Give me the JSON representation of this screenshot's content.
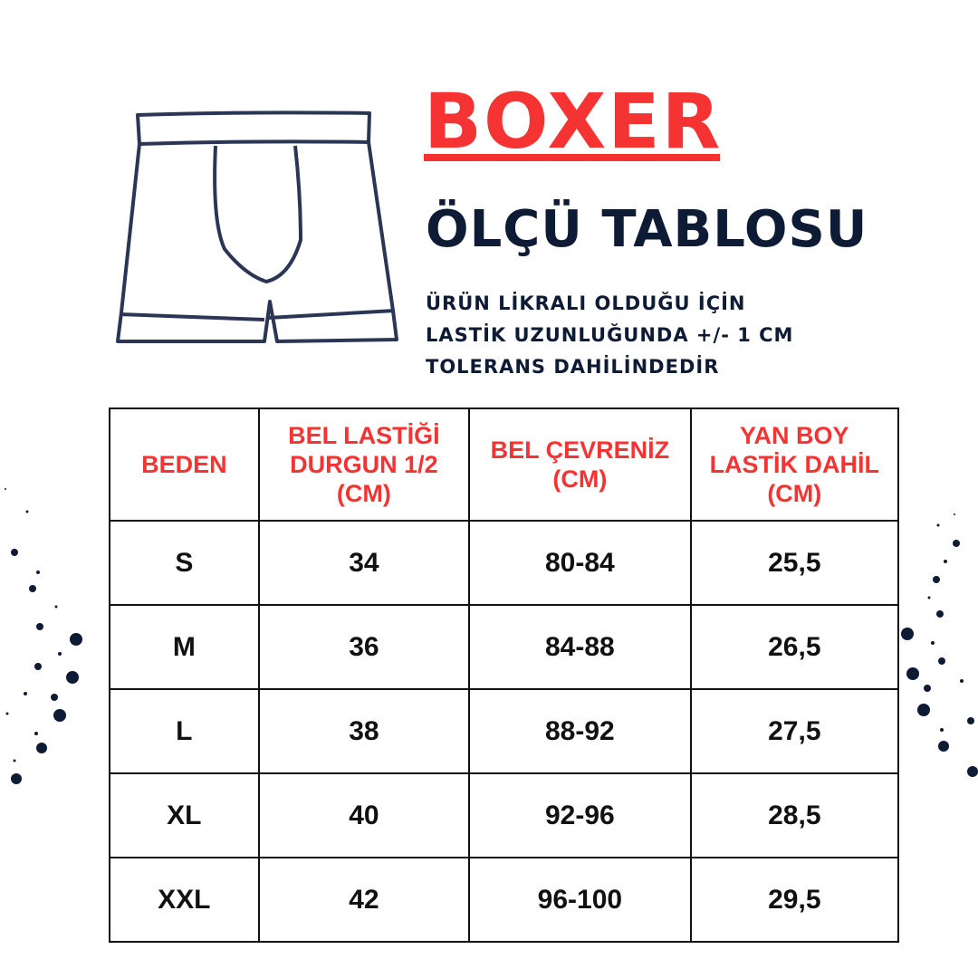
{
  "header": {
    "title": "BOXER",
    "subtitle": "ÖLÇÜ TABLOSU",
    "note_lines": [
      "ÜRÜN LİKRALI OLDUĞU İÇİN",
      "LASTİK UZUNLUĞUNDA +/- 1 CM",
      "TOLERANS DAHİLİNDEDİR"
    ]
  },
  "colors": {
    "accent": "#f53333",
    "navy": "#0e1b35"
  },
  "illustration": "boxer-brief-outline-icon",
  "table": {
    "columns": [
      [
        "BEDEN"
      ],
      [
        "BEL LASTİĞİ",
        "DURGUN 1/2",
        "(CM)"
      ],
      [
        "BEL ÇEVRENİZ",
        "(CM)"
      ],
      [
        "YAN BOY",
        "LASTİK DAHİL",
        "(CM)"
      ]
    ],
    "rows": [
      [
        "S",
        "34",
        "80-84",
        "25,5"
      ],
      [
        "M",
        "36",
        "84-88",
        "26,5"
      ],
      [
        "L",
        "38",
        "88-92",
        "27,5"
      ],
      [
        "XL",
        "40",
        "92-96",
        "28,5"
      ],
      [
        "XXL",
        "42",
        "96-100",
        "29,5"
      ]
    ]
  }
}
